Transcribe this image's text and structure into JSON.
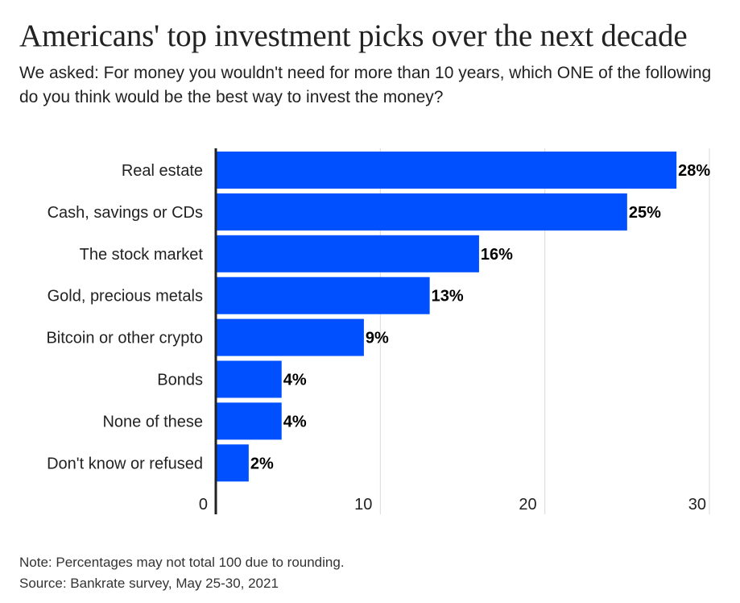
{
  "title": "Americans' top investment picks over the next decade",
  "subtitle": "We asked: For money you wouldn't need for more than 10 years, which ONE of the following do you think would be the best way to invest the money?",
  "notes": {
    "note": "Note: Percentages may not total 100 due to rounding.",
    "source": "Source: Bankrate survey, May 25-30, 2021"
  },
  "colors": {
    "bar": "#0050ff",
    "grid": "#d9d9d9",
    "axis": "#222222",
    "text": "#222222"
  },
  "chart_data": {
    "type": "bar",
    "orientation": "horizontal",
    "categories": [
      "Real estate",
      "Cash, savings or CDs",
      "The stock market",
      "Gold, precious metals",
      "Bitcoin or other crypto",
      "Bonds",
      "None of these",
      "Don't know or refused"
    ],
    "values": [
      28,
      25,
      16,
      13,
      9,
      4,
      4,
      2
    ],
    "value_labels": [
      "28%",
      "25%",
      "16%",
      "13%",
      "9%",
      "4%",
      "4%",
      "2%"
    ],
    "xticks": [
      "0",
      "10",
      "20",
      "30"
    ],
    "xlim": [
      0,
      30
    ],
    "grid": true
  }
}
